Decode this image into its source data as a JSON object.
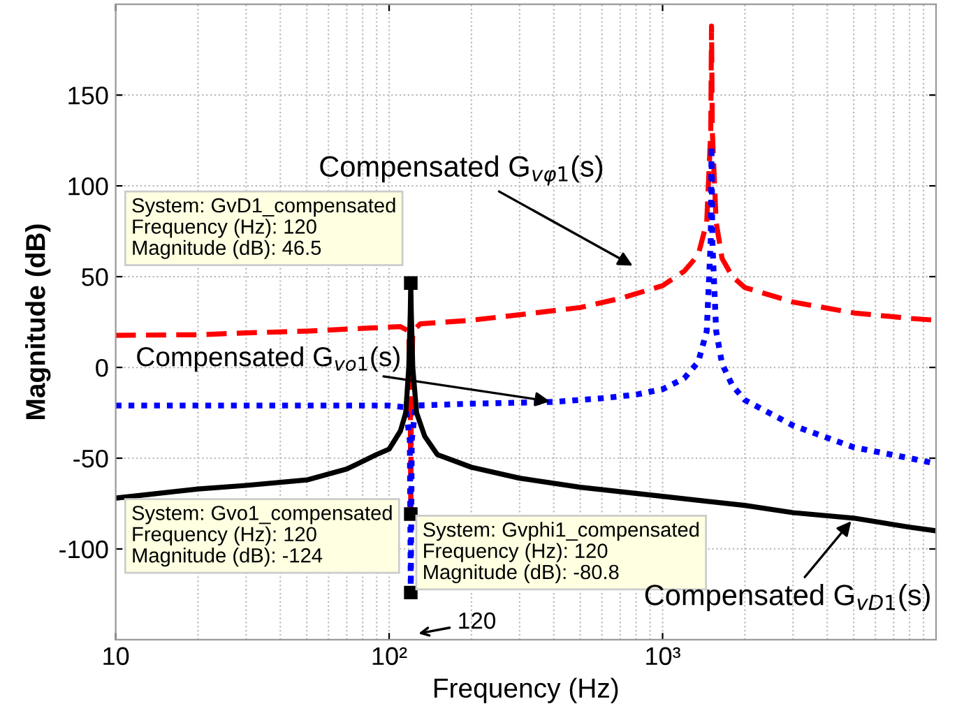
{
  "chart_data": {
    "type": "line",
    "xlabel": "Frequency (Hz)",
    "ylabel": "Magnitude (dB)",
    "log": "x",
    "xlim": [
      10,
      10000
    ],
    "xticks": [
      10,
      {
        "value": 100,
        "label": "10²"
      },
      {
        "value": 1000,
        "label": "10³"
      }
    ],
    "ylim": [
      -150,
      200
    ],
    "yticks": [
      -100,
      -50,
      0,
      50,
      100,
      150
    ],
    "grid": true,
    "legend": false,
    "series": [
      {
        "color": "#ff0000",
        "line_style": "dashed",
        "x": [
          10,
          20,
          30,
          50,
          80,
          110,
          118,
          119.5,
          120,
          120.5,
          122,
          130,
          200,
          300,
          500,
          700,
          1000,
          1200,
          1350,
          1450,
          1500,
          1510,
          1520,
          1570,
          1650,
          1800,
          2000,
          3000,
          5000,
          8000,
          10000
        ],
        "values": [
          17.7,
          18,
          19,
          20,
          21.5,
          22.5,
          20,
          -20,
          -80.8,
          -20,
          20,
          24,
          26,
          29,
          33,
          38,
          45,
          53,
          62,
          80,
          130,
          188,
          130,
          80,
          60,
          50,
          44,
          36,
          30,
          27,
          26
        ]
      },
      {
        "color": "#0000ff",
        "line_style": "dotted",
        "x": [
          10,
          30,
          60,
          100,
          115,
          119,
          120,
          121,
          125,
          200,
          400,
          600,
          800,
          1000,
          1200,
          1350,
          1450,
          1500,
          1510,
          1520,
          1570,
          1650,
          1800,
          2000,
          3000,
          5000,
          8000,
          10000
        ],
        "values": [
          -21,
          -21,
          -21,
          -21,
          -22,
          -40,
          -124,
          -40,
          -21,
          -20,
          -19,
          -17,
          -15,
          -12,
          -6,
          3,
          20,
          70,
          122,
          70,
          20,
          2,
          -10,
          -18,
          -32,
          -44,
          -50,
          -53
        ]
      },
      {
        "color": "#000000",
        "line_style": "solid",
        "x": [
          10,
          20,
          30,
          50,
          70,
          90,
          100,
          110,
          115,
          118,
          119.5,
          120,
          120.5,
          122,
          126,
          135,
          150,
          200,
          300,
          500,
          1000,
          2000,
          3000,
          5000,
          8000,
          10000
        ],
        "values": [
          -72,
          -67,
          -65,
          -62,
          -56,
          -48,
          -45,
          -35,
          -25,
          0,
          30,
          46.5,
          30,
          0,
          -25,
          -38,
          -48,
          -55,
          -61,
          -66,
          -71,
          -76,
          -80,
          -83,
          -88,
          -90
        ]
      }
    ],
    "annotations": [
      {
        "text": "System: GvD1_compensated\nFrequency (Hz): 120\nMagnitude (dB): 46.5",
        "x": 120,
        "y": 46.5
      },
      {
        "text": "System: Gvo1_compensated\nFrequency (Hz): 120\nMagnitude (dB): -124",
        "x": 120,
        "y": -124
      },
      {
        "text": "System: Gvphi1_compensated\nFrequency (Hz): 120\nMagnitude (dB): -80.8",
        "x": 120,
        "y": -80.8
      },
      "120",
      "Compensated G$_{vφ1}$(s)",
      {
        "text": "Compensated G$_{vo1}$(s)",
        "x": 400,
        "y": -19
      },
      {
        "text": "Compensated G$_{vD1}$(s)",
        "x": 5000,
        "y": -83
      }
    ]
  }
}
